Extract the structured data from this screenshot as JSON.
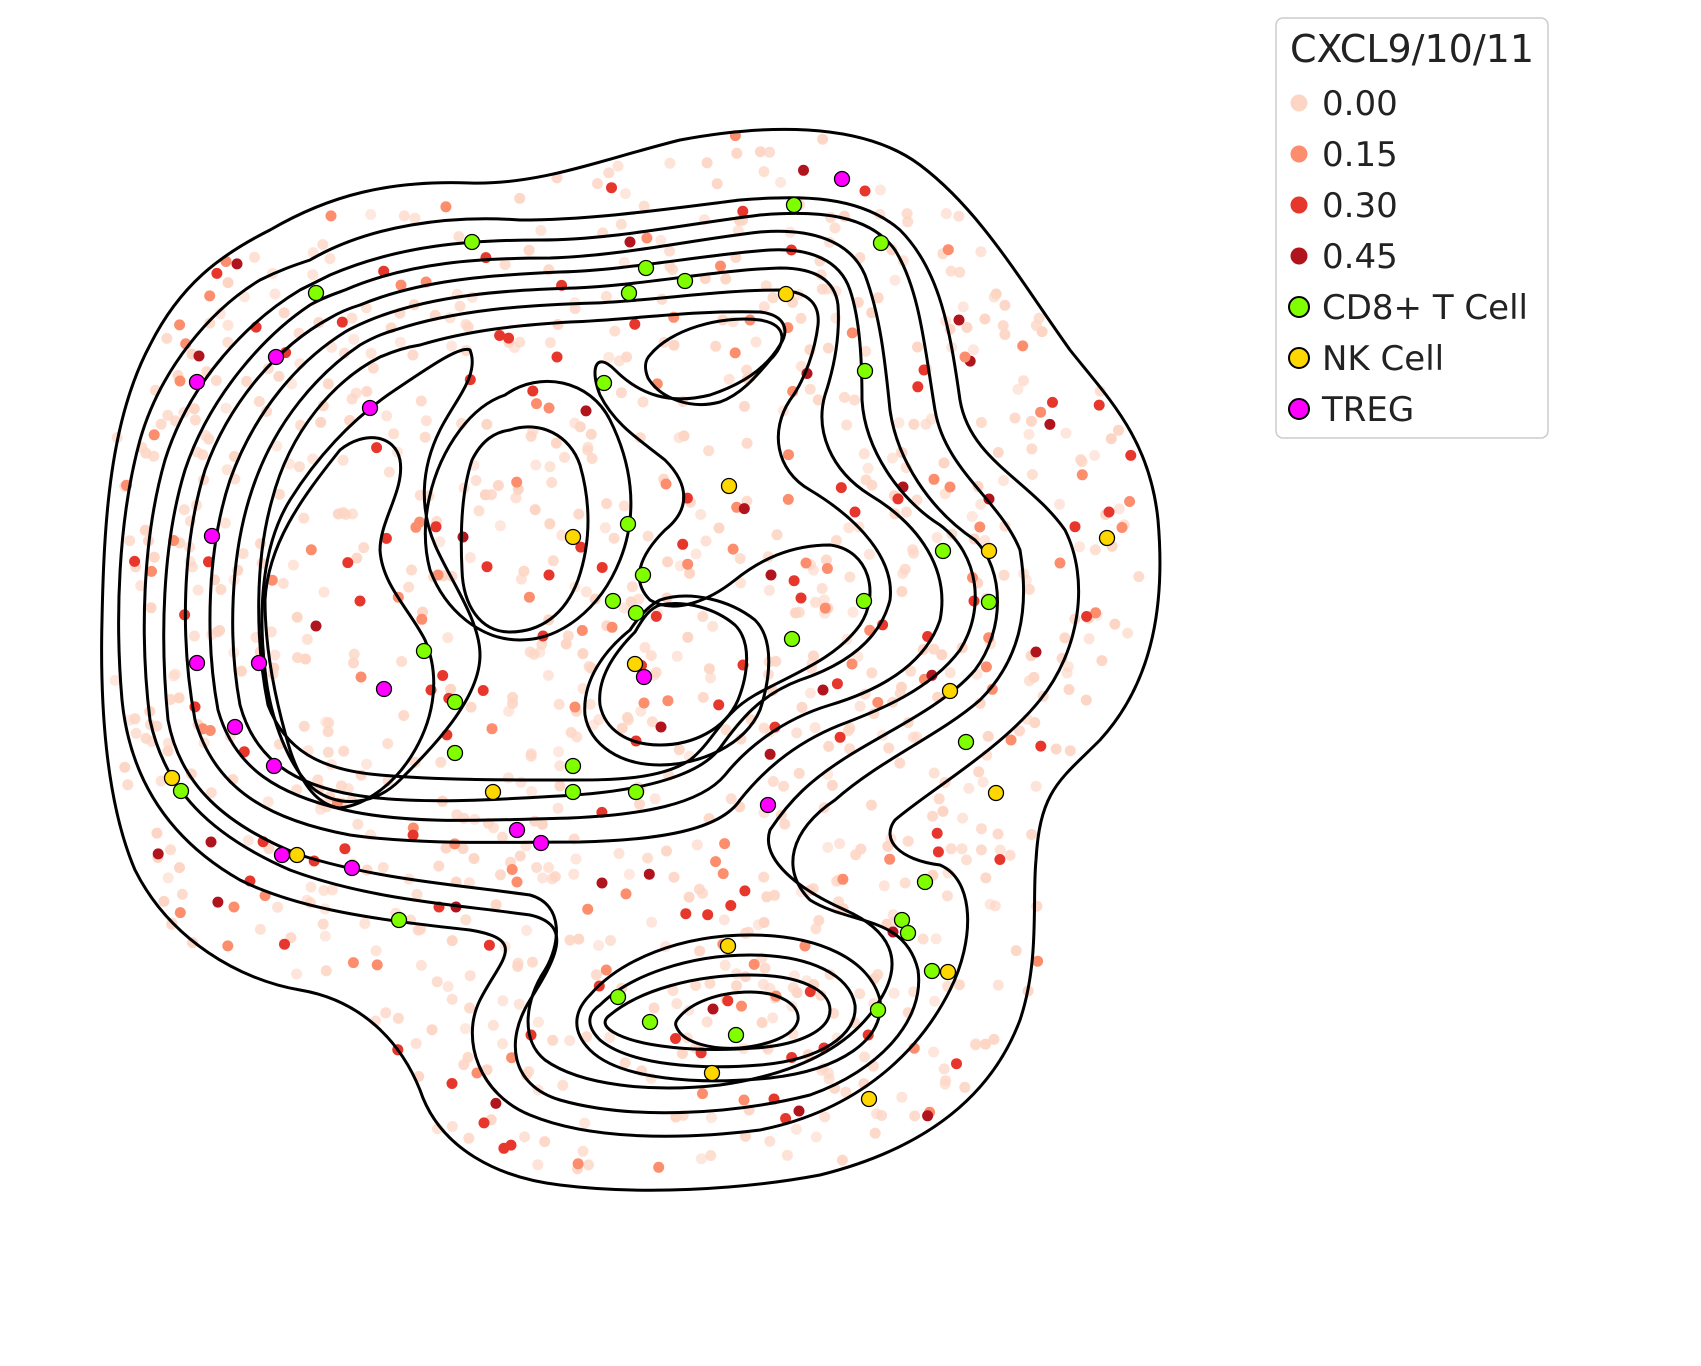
{
  "chart_data": {
    "type": "scatter",
    "title": "",
    "xlabel": "",
    "ylabel": "",
    "axes_visible": false,
    "grid": false,
    "overlay": "density contour lines (black)",
    "legend": {
      "placement": "top-right",
      "title": "CXCL9/10/11",
      "entries": [
        {
          "label": "0.00",
          "color": "#fdd5c4",
          "kind": "expression"
        },
        {
          "label": "0.15",
          "color": "#fc8d6d",
          "kind": "expression"
        },
        {
          "label": "0.30",
          "color": "#e7362b",
          "kind": "expression"
        },
        {
          "label": "0.45",
          "color": "#b0141c",
          "kind": "expression"
        },
        {
          "label": "CD8+ T Cell",
          "color": "#7fff00",
          "kind": "cell-type"
        },
        {
          "label": "NK Cell",
          "color": "#ffd700",
          "kind": "cell-type"
        },
        {
          "label": "TREG",
          "color": "#ff00ff",
          "kind": "cell-type"
        }
      ]
    },
    "series": [
      {
        "name": "CD8+ T Cell",
        "color": "#7fff00",
        "points": [
          [
            472,
            242
          ],
          [
            316,
            293
          ],
          [
            646,
            268
          ],
          [
            685,
            281
          ],
          [
            629,
            293
          ],
          [
            794,
            205
          ],
          [
            881,
            243
          ],
          [
            604,
            383
          ],
          [
            865,
            371
          ],
          [
            628,
            524
          ],
          [
            643,
            575
          ],
          [
            613,
            601
          ],
          [
            636,
            613
          ],
          [
            943,
            551
          ],
          [
            989,
            602
          ],
          [
            864,
            601
          ],
          [
            792,
            639
          ],
          [
            424,
            651
          ],
          [
            455,
            702
          ],
          [
            455,
            753
          ],
          [
            573,
            766
          ],
          [
            573,
            792
          ],
          [
            636,
            792
          ],
          [
            181,
            791
          ],
          [
            966,
            742
          ],
          [
            925,
            882
          ],
          [
            902,
            920
          ],
          [
            908,
            933
          ],
          [
            932,
            971
          ],
          [
            878,
            1010
          ],
          [
            618,
            997
          ],
          [
            650,
            1022
          ],
          [
            736,
            1035
          ],
          [
            399,
            920
          ]
        ]
      },
      {
        "name": "NK Cell",
        "color": "#ffd700",
        "points": [
          [
            786,
            294
          ],
          [
            729,
            486
          ],
          [
            573,
            537
          ],
          [
            635,
            664
          ],
          [
            989,
            551
          ],
          [
            950,
            691
          ],
          [
            996,
            793
          ],
          [
            1107,
            538
          ],
          [
            493,
            792
          ],
          [
            297,
            855
          ],
          [
            172,
            778
          ],
          [
            728,
            946
          ],
          [
            948,
            972
          ],
          [
            712,
            1073
          ],
          [
            869,
            1099
          ]
        ]
      },
      {
        "name": "TREG",
        "color": "#ff00ff",
        "points": [
          [
            842,
            179
          ],
          [
            276,
            357
          ],
          [
            197,
            382
          ],
          [
            370,
            408
          ],
          [
            212,
            536
          ],
          [
            197,
            663
          ],
          [
            259,
            663
          ],
          [
            384,
            689
          ],
          [
            644,
            677
          ],
          [
            235,
            727
          ],
          [
            274,
            766
          ],
          [
            768,
            805
          ],
          [
            517,
            830
          ],
          [
            541,
            843
          ],
          [
            282,
            855
          ],
          [
            352,
            868
          ]
        ]
      }
    ],
    "background_cells": [
      {
        "level": "0.00",
        "count": 900
      },
      {
        "level": "0.15",
        "count": 90
      },
      {
        "level": "0.30",
        "count": 80
      },
      {
        "level": "0.45",
        "count": 14
      }
    ],
    "expression_hotspots": [
      [
        557,
        357
      ],
      [
        630,
        242
      ],
      [
        750,
        320
      ],
      [
        924,
        370
      ],
      [
        903,
        487
      ],
      [
        950,
        487
      ],
      [
        855,
        512
      ],
      [
        989,
        499
      ],
      [
        1060,
        563
      ],
      [
        974,
        601
      ],
      [
        1036,
        652
      ],
      [
        1011,
        740
      ],
      [
        549,
        575
      ],
      [
        463,
        537
      ],
      [
        438,
        575
      ],
      [
        360,
        601
      ],
      [
        316,
        626
      ],
      [
        361,
        677
      ],
      [
        431,
        690
      ],
      [
        823,
        690
      ],
      [
        852,
        664
      ],
      [
        743,
        665
      ],
      [
        771,
        575
      ],
      [
        806,
        563
      ],
      [
        636,
        741
      ],
      [
        661,
        727
      ],
      [
        644,
        703
      ],
      [
        543,
        636
      ],
      [
        602,
        883
      ],
      [
        517,
        882
      ],
      [
        439,
        907
      ],
      [
        456,
        907
      ],
      [
        234,
        907
      ],
      [
        250,
        881
      ],
      [
        211,
        842
      ],
      [
        477,
        1073
      ],
      [
        531,
        1035
      ],
      [
        713,
        1009
      ],
      [
        776,
        996
      ],
      [
        824,
        1048
      ],
      [
        799,
        1111
      ],
      [
        744,
        1100
      ],
      [
        774,
        1099
      ],
      [
        893,
        932
      ],
      [
        805,
        946
      ],
      [
        865,
        191
      ],
      [
        959,
        320
      ],
      [
        965,
        357
      ],
      [
        1109,
        512
      ],
      [
        199,
        356
      ],
      [
        180,
        381
      ]
    ]
  }
}
